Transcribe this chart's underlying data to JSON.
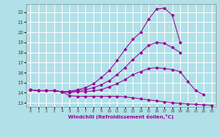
{
  "xlabel": "Windchill (Refroidissement éolien,°C)",
  "bg_color": "#b0e0e8",
  "grid_color": "#ffffff",
  "line_color": "#990099",
  "xlim": [
    -0.5,
    23.5
  ],
  "ylim": [
    12.6,
    22.8
  ],
  "yticks": [
    13,
    14,
    15,
    16,
    17,
    18,
    19,
    20,
    21,
    22
  ],
  "xticks": [
    0,
    1,
    2,
    3,
    4,
    5,
    6,
    7,
    8,
    9,
    10,
    11,
    12,
    13,
    14,
    15,
    16,
    17,
    18,
    19,
    20,
    21,
    22,
    23
  ],
  "lines": [
    {
      "x": [
        0,
        1,
        2,
        3,
        4,
        5,
        6,
        7,
        8,
        9,
        10,
        11,
        12,
        13,
        14,
        15,
        16,
        17,
        18,
        19,
        20,
        21,
        22,
        23
      ],
      "y": [
        14.3,
        14.2,
        14.2,
        14.2,
        14.1,
        13.7,
        13.65,
        13.65,
        13.65,
        13.65,
        13.65,
        13.65,
        13.6,
        13.5,
        13.4,
        13.3,
        13.2,
        13.1,
        13.0,
        12.95,
        12.9,
        12.85,
        12.8,
        12.75
      ]
    },
    {
      "x": [
        0,
        1,
        2,
        3,
        4,
        5,
        6,
        7,
        8,
        9,
        10,
        11,
        12,
        13,
        14,
        15,
        16,
        17,
        18,
        19,
        20,
        21,
        22
      ],
      "y": [
        14.3,
        14.2,
        14.2,
        14.2,
        14.1,
        14.0,
        14.1,
        14.1,
        14.2,
        14.3,
        14.6,
        14.9,
        15.3,
        15.8,
        16.1,
        16.4,
        16.5,
        16.4,
        16.3,
        16.1,
        15.1,
        14.2,
        13.8
      ]
    },
    {
      "x": [
        0,
        1,
        2,
        3,
        4,
        5,
        6,
        7,
        8,
        9,
        10,
        11,
        12,
        13,
        14,
        15,
        16,
        17,
        18,
        19
      ],
      "y": [
        14.3,
        14.2,
        14.2,
        14.2,
        14.1,
        14.1,
        14.2,
        14.3,
        14.5,
        14.8,
        15.2,
        15.8,
        16.5,
        17.3,
        18.0,
        18.7,
        19.0,
        18.9,
        18.5,
        18.0
      ]
    },
    {
      "x": [
        0,
        1,
        2,
        3,
        4,
        5,
        6,
        7,
        8,
        9,
        10,
        11,
        12,
        13,
        14,
        15,
        16,
        17,
        18,
        19
      ],
      "y": [
        14.3,
        14.2,
        14.2,
        14.2,
        14.1,
        14.15,
        14.3,
        14.5,
        14.9,
        15.5,
        16.2,
        17.2,
        18.3,
        19.3,
        20.0,
        21.3,
        22.3,
        22.4,
        21.7,
        19.0
      ]
    }
  ]
}
